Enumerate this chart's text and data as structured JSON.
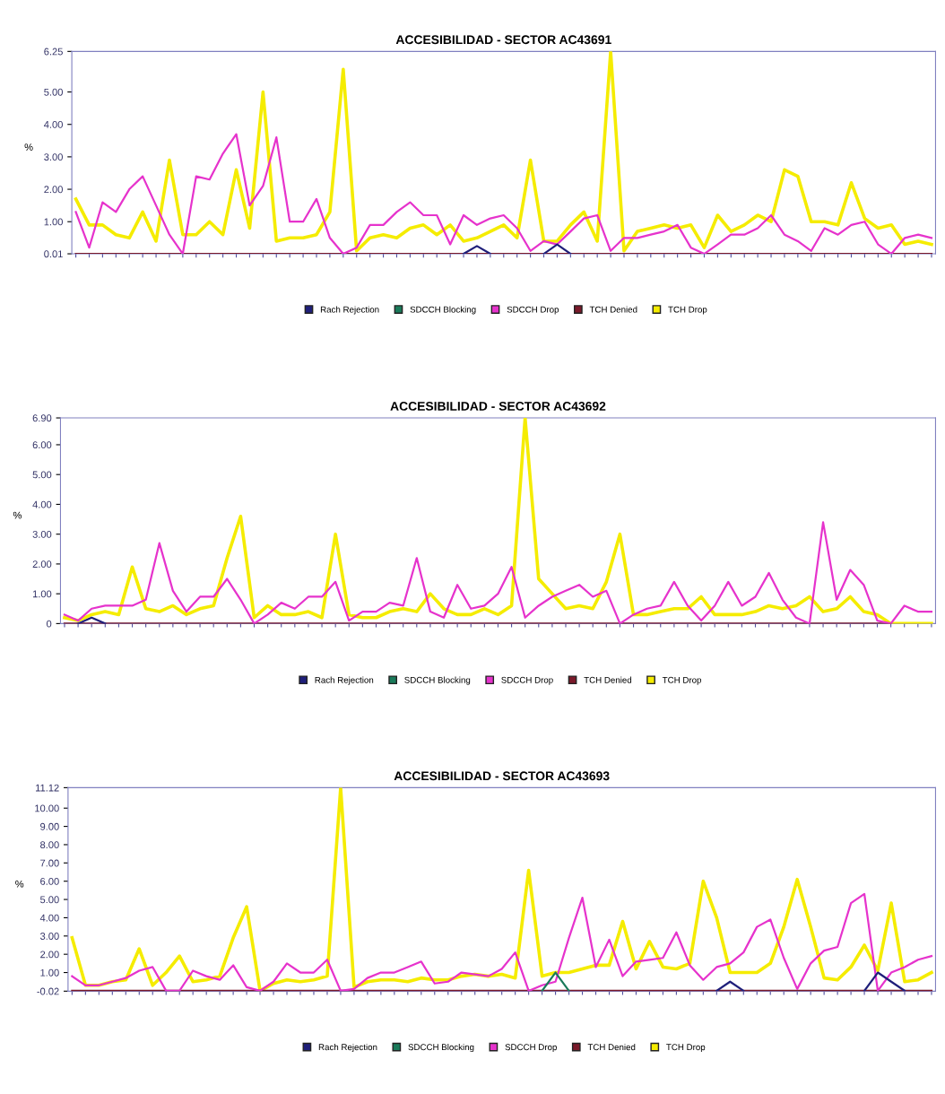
{
  "chart_data": [
    {
      "type": "line",
      "title": "ACCESIBILIDAD - SECTOR AC43691",
      "ylabel": "%",
      "legend": "bottom",
      "grid": false,
      "marker": "none",
      "line_style": "solid",
      "categories": [
        null,
        null,
        null,
        null,
        null,
        null,
        null,
        null,
        null,
        null,
        null,
        null,
        null,
        null,
        null,
        null,
        null,
        null,
        null,
        null,
        null,
        null,
        null,
        null,
        null,
        null,
        null,
        null,
        null,
        null,
        null,
        null,
        null,
        null,
        null,
        null,
        null,
        null,
        null,
        null,
        null,
        null,
        null,
        null,
        null,
        null,
        null,
        null,
        null,
        null,
        null,
        null,
        null,
        null,
        null,
        null,
        null,
        null,
        null,
        null,
        null,
        null,
        null,
        null,
        null
      ],
      "ylim": [
        0.01,
        6.25
      ],
      "yticks": [
        {
          "value": 0.01,
          "label": "0.01"
        },
        {
          "value": 1,
          "label": "1.00"
        },
        {
          "value": 2,
          "label": "2.00"
        },
        {
          "value": 3,
          "label": "3.00"
        },
        {
          "value": 4,
          "label": "4.00"
        },
        {
          "value": 5,
          "label": "5.00"
        },
        {
          "value": 6.25,
          "label": "6.25"
        }
      ],
      "series": [
        {
          "name": "Rach Rejection",
          "color": "#1f1f7a",
          "values": [
            null,
            null,
            null,
            null,
            null,
            null,
            null,
            null,
            null,
            null,
            null,
            null,
            null,
            null,
            null,
            null,
            null,
            null,
            null,
            null,
            null,
            null,
            null,
            null,
            null,
            null,
            null,
            null,
            null,
            0.01,
            0.25,
            0.01,
            null,
            null,
            null,
            0.01,
            0.3,
            0.01,
            null,
            null,
            null,
            null,
            null,
            null,
            null,
            null,
            null,
            null,
            null,
            null,
            null,
            null,
            null,
            null,
            null,
            null,
            null,
            null,
            null,
            null,
            null,
            null,
            null,
            null,
            null
          ]
        },
        {
          "name": "SDCCH Blocking",
          "color": "#1a7a5a",
          "values": [
            null,
            null,
            null,
            null,
            null,
            null,
            null,
            null,
            null,
            null,
            null,
            null,
            null,
            null,
            null,
            null,
            null,
            null,
            null,
            null,
            null,
            null,
            null,
            null,
            null,
            null,
            null,
            null,
            null,
            null,
            null,
            null,
            null,
            null,
            null,
            null,
            null,
            null,
            null,
            null,
            null,
            null,
            null,
            null,
            null,
            null,
            null,
            null,
            null,
            null,
            null,
            null,
            null,
            null,
            null,
            null,
            null,
            null,
            null,
            null,
            null,
            null,
            null,
            null,
            null
          ]
        },
        {
          "name": "SDCCH Drop",
          "color": "#e633cc",
          "values": [
            1.3,
            0.2,
            1.6,
            1.3,
            2.0,
            2.4,
            1.5,
            0.6,
            0.01,
            2.4,
            2.3,
            3.1,
            3.7,
            1.5,
            2.1,
            3.6,
            1.0,
            1.0,
            1.7,
            0.5,
            0.01,
            0.2,
            0.9,
            0.9,
            1.3,
            1.6,
            1.2,
            1.2,
            0.3,
            1.2,
            0.9,
            1.1,
            1.2,
            0.8,
            0.1,
            0.4,
            0.3,
            0.7,
            1.1,
            1.2,
            0.1,
            0.5,
            0.5,
            0.6,
            0.7,
            0.9,
            0.2,
            0.01,
            0.3,
            0.6,
            0.6,
            0.8,
            1.2,
            0.6,
            0.4,
            0.1,
            0.8,
            0.6,
            0.9,
            1.0,
            0.3,
            0.01,
            0.5,
            0.6,
            0.5
          ]
        },
        {
          "name": "TCH Denied",
          "color": "#7a1a2a",
          "values": [
            0.01,
            0.01,
            0.01,
            0.01,
            0.01,
            0.01,
            0.01,
            0.01,
            0.01,
            0.01,
            0.01,
            0.01,
            0.01,
            0.01,
            0.01,
            0.01,
            0.01,
            0.01,
            0.01,
            0.01,
            0.01,
            0.01,
            0.01,
            0.01,
            0.01,
            0.01,
            0.01,
            0.01,
            0.01,
            0.01,
            0.01,
            0.01,
            0.01,
            0.01,
            0.01,
            0.01,
            0.01,
            0.01,
            0.01,
            0.01,
            0.01,
            0.01,
            0.01,
            0.01,
            0.01,
            0.01,
            0.01,
            0.01,
            0.01,
            0.01,
            0.01,
            0.01,
            0.01,
            0.01,
            0.01,
            0.01,
            0.01,
            0.01,
            0.01,
            0.01,
            0.01,
            0.01,
            0.01,
            0.01,
            0.01
          ]
        },
        {
          "name": "TCH Drop",
          "color": "#f5ec00",
          "values": [
            1.7,
            0.9,
            0.9,
            0.6,
            0.5,
            1.3,
            0.4,
            2.9,
            0.6,
            0.6,
            1.0,
            0.6,
            2.6,
            0.8,
            5.0,
            0.4,
            0.5,
            0.5,
            0.6,
            1.3,
            5.7,
            0.1,
            0.5,
            0.6,
            0.5,
            0.8,
            0.9,
            0.6,
            0.9,
            0.4,
            0.5,
            0.7,
            0.9,
            0.5,
            2.9,
            0.4,
            0.4,
            0.9,
            1.3,
            0.4,
            6.25,
            0.1,
            0.7,
            0.8,
            0.9,
            0.8,
            0.9,
            0.2,
            1.2,
            0.7,
            0.9,
            1.2,
            1.0,
            2.6,
            2.4,
            1.0,
            1.0,
            0.9,
            2.2,
            1.1,
            0.8,
            0.9,
            0.3,
            0.4,
            0.3
          ]
        }
      ]
    },
    {
      "type": "line",
      "title": "ACCESIBILIDAD - SECTOR AC43692",
      "ylabel": "%",
      "legend": "bottom",
      "grid": false,
      "marker": "none",
      "line_style": "solid",
      "categories": [
        null,
        null,
        null,
        null,
        null,
        null,
        null,
        null,
        null,
        null,
        null,
        null,
        null,
        null,
        null,
        null,
        null,
        null,
        null,
        null,
        null,
        null,
        null,
        null,
        null,
        null,
        null,
        null,
        null,
        null,
        null,
        null,
        null,
        null,
        null,
        null,
        null,
        null,
        null,
        null,
        null,
        null,
        null,
        null,
        null,
        null,
        null,
        null,
        null,
        null,
        null,
        null,
        null,
        null,
        null,
        null,
        null,
        null,
        null,
        null,
        null,
        null,
        null,
        null,
        null
      ],
      "ylim": [
        0,
        6.9
      ],
      "yticks": [
        0,
        {
          "value": 1,
          "label": "1.00"
        },
        {
          "value": 2,
          "label": "2.00"
        },
        {
          "value": 3,
          "label": "3.00"
        },
        {
          "value": 4,
          "label": "4.00"
        },
        {
          "value": 5,
          "label": "5.00"
        },
        {
          "value": 6,
          "label": "6.00"
        },
        {
          "value": 6.9,
          "label": "6.90"
        }
      ],
      "series": [
        {
          "name": "Rach Rejection",
          "color": "#1f1f7a",
          "values": [
            null,
            0,
            0.2,
            0,
            null,
            null,
            null,
            null,
            null,
            null,
            null,
            null,
            null,
            null,
            null,
            null,
            null,
            null,
            null,
            null,
            null,
            null,
            null,
            null,
            null,
            null,
            null,
            null,
            null,
            null,
            null,
            null,
            null,
            null,
            null,
            null,
            null,
            null,
            null,
            null,
            null,
            null,
            null,
            null,
            null,
            null,
            null,
            null,
            null,
            null,
            null,
            null,
            null,
            null,
            null,
            null,
            null,
            null,
            null,
            null,
            null,
            null,
            null,
            null,
            null
          ]
        },
        {
          "name": "SDCCH Blocking",
          "color": "#1a7a5a",
          "values": [
            null,
            null,
            null,
            null,
            null,
            null,
            null,
            null,
            null,
            null,
            null,
            null,
            null,
            null,
            null,
            null,
            null,
            null,
            null,
            null,
            null,
            null,
            null,
            null,
            null,
            null,
            null,
            null,
            null,
            null,
            null,
            null,
            null,
            null,
            null,
            null,
            null,
            null,
            null,
            null,
            null,
            null,
            null,
            null,
            null,
            null,
            null,
            null,
            null,
            null,
            null,
            null,
            null,
            null,
            null,
            null,
            null,
            null,
            null,
            null,
            null,
            null,
            null,
            null,
            null
          ]
        },
        {
          "name": "SDCCH Drop",
          "color": "#e633cc",
          "values": [
            0.3,
            0.1,
            0.5,
            0.6,
            0.6,
            0.6,
            0.8,
            2.7,
            1.1,
            0.4,
            0.9,
            0.9,
            1.5,
            0.8,
            0,
            0.3,
            0.7,
            0.5,
            0.9,
            0.9,
            1.4,
            0.1,
            0.4,
            0.4,
            0.7,
            0.6,
            2.2,
            0.4,
            0.2,
            1.3,
            0.5,
            0.6,
            1.0,
            1.9,
            0.2,
            0.6,
            0.9,
            1.1,
            1.3,
            0.9,
            1.1,
            0,
            0.3,
            0.5,
            0.6,
            1.4,
            0.6,
            0.1,
            0.6,
            1.4,
            0.6,
            0.9,
            1.7,
            0.8,
            0.2,
            0,
            3.4,
            0.8,
            1.8,
            1.3,
            0.1,
            0,
            0.6,
            0.4,
            0.4
          ]
        },
        {
          "name": "TCH Denied",
          "color": "#7a1a2a",
          "values": [
            0,
            0,
            0,
            0,
            0,
            0,
            0,
            0,
            0,
            0,
            0,
            0,
            0,
            0,
            0,
            0,
            0,
            0,
            0,
            0,
            0,
            0,
            0,
            0,
            0,
            0,
            0,
            0,
            0,
            0,
            0,
            0,
            0,
            0,
            0,
            0,
            0,
            0,
            0,
            0,
            0,
            0,
            0,
            0,
            0,
            0,
            0,
            0,
            0,
            0,
            0,
            0,
            0,
            0,
            0,
            0,
            0,
            0,
            0,
            0,
            0,
            0,
            null,
            null,
            null
          ]
        },
        {
          "name": "TCH Drop",
          "color": "#f5ec00",
          "values": [
            0.2,
            0.1,
            0.3,
            0.4,
            0.3,
            1.9,
            0.5,
            0.4,
            0.6,
            0.3,
            0.5,
            0.6,
            2.2,
            3.6,
            0.2,
            0.6,
            0.3,
            0.3,
            0.4,
            0.2,
            3.0,
            0.3,
            0.2,
            0.2,
            0.4,
            0.5,
            0.4,
            1.0,
            0.5,
            0.3,
            0.3,
            0.5,
            0.3,
            0.6,
            6.9,
            1.5,
            1.0,
            0.5,
            0.6,
            0.5,
            1.4,
            3.0,
            0.3,
            0.3,
            0.4,
            0.5,
            0.5,
            0.9,
            0.3,
            0.3,
            0.3,
            0.4,
            0.6,
            0.5,
            0.6,
            0.9,
            0.4,
            0.5,
            0.9,
            0.4,
            0.3,
            0,
            0,
            0,
            0
          ]
        }
      ]
    },
    {
      "type": "line",
      "title": "ACCESIBILIDAD - SECTOR AC43693",
      "ylabel": "%",
      "legend": "bottom",
      "grid": false,
      "marker": "none",
      "line_style": "solid",
      "categories": [
        null,
        null,
        null,
        null,
        null,
        null,
        null,
        null,
        null,
        null,
        null,
        null,
        null,
        null,
        null,
        null,
        null,
        null,
        null,
        null,
        null,
        null,
        null,
        null,
        null,
        null,
        null,
        null,
        null,
        null,
        null,
        null,
        null,
        null,
        null,
        null,
        null,
        null,
        null,
        null,
        null,
        null,
        null,
        null,
        null,
        null,
        null,
        null,
        null,
        null,
        null,
        null,
        null,
        null,
        null,
        null,
        null,
        null,
        null,
        null,
        null,
        null,
        null,
        null,
        null
      ],
      "ylim": [
        -0.02,
        11.12
      ],
      "yticks": [
        {
          "value": -0.02,
          "label": "-0.02"
        },
        {
          "value": 1,
          "label": "1.00"
        },
        {
          "value": 2,
          "label": "2.00"
        },
        {
          "value": 3,
          "label": "3.00"
        },
        {
          "value": 4,
          "label": "4.00"
        },
        {
          "value": 5,
          "label": "5.00"
        },
        {
          "value": 6,
          "label": "6.00"
        },
        {
          "value": 7,
          "label": "7.00"
        },
        {
          "value": 8,
          "label": "8.00"
        },
        {
          "value": 9,
          "label": "9.00"
        },
        {
          "value": 10,
          "label": "10.00"
        },
        {
          "value": 11.12,
          "label": "11.12"
        }
      ],
      "series": [
        {
          "name": "Rach Rejection",
          "color": "#1f1f7a",
          "values": [
            null,
            null,
            null,
            null,
            null,
            null,
            null,
            null,
            null,
            null,
            null,
            null,
            null,
            null,
            null,
            null,
            null,
            null,
            null,
            null,
            null,
            null,
            null,
            null,
            null,
            null,
            null,
            null,
            null,
            null,
            null,
            null,
            null,
            null,
            null,
            null,
            null,
            null,
            null,
            null,
            null,
            null,
            null,
            null,
            null,
            null,
            null,
            null,
            0,
            0.5,
            0,
            null,
            null,
            null,
            null,
            null,
            null,
            null,
            null,
            0,
            1.0,
            0.5,
            0,
            null,
            null
          ]
        },
        {
          "name": "SDCCH Blocking",
          "color": "#1a7a5a",
          "values": [
            null,
            null,
            null,
            null,
            null,
            null,
            null,
            null,
            null,
            null,
            null,
            null,
            null,
            null,
            null,
            null,
            null,
            null,
            null,
            null,
            null,
            null,
            null,
            null,
            null,
            null,
            null,
            null,
            null,
            null,
            null,
            null,
            null,
            null,
            null,
            0,
            1.0,
            0,
            null,
            null,
            null,
            null,
            null,
            null,
            null,
            null,
            null,
            null,
            null,
            null,
            null,
            null,
            null,
            null,
            null,
            null,
            null,
            null,
            null,
            null,
            null,
            null,
            null,
            null,
            null
          ]
        },
        {
          "name": "SDCCH Drop",
          "color": "#e633cc",
          "values": [
            0.8,
            0.3,
            0.3,
            0.5,
            0.7,
            1.1,
            1.3,
            0,
            0,
            1.1,
            0.8,
            0.6,
            1.4,
            0.2,
            0,
            0.5,
            1.5,
            1.0,
            1.0,
            1.7,
            0,
            0.1,
            0.7,
            1.0,
            1.0,
            1.3,
            1.6,
            0.4,
            0.5,
            1.0,
            0.9,
            0.8,
            1.2,
            2.1,
            0,
            0.3,
            0.5,
            2.9,
            5.1,
            1.3,
            2.8,
            0.8,
            1.6,
            1.7,
            1.8,
            3.2,
            1.4,
            0.6,
            1.3,
            1.5,
            2.1,
            3.5,
            3.9,
            1.8,
            0.1,
            1.5,
            2.2,
            2.4,
            4.8,
            5.3,
            0,
            1.0,
            1.3,
            1.7,
            1.9
          ]
        },
        {
          "name": "TCH Denied",
          "color": "#7a1a2a",
          "values": [
            0,
            0,
            0,
            0,
            0,
            0,
            0,
            0,
            0,
            0,
            0,
            0,
            0,
            0,
            0,
            0,
            0,
            0,
            0,
            0,
            0,
            0,
            0,
            0,
            0,
            0,
            0,
            0,
            0,
            0,
            0,
            0,
            0,
            0,
            0,
            0,
            0,
            0,
            0,
            0,
            0,
            0,
            0,
            0,
            0,
            0,
            0,
            0,
            0,
            0,
            0,
            0,
            0,
            0,
            0,
            0,
            0,
            0,
            0,
            0,
            0,
            0,
            0,
            0,
            0
          ]
        },
        {
          "name": "TCH Drop",
          "color": "#f5ec00",
          "values": [
            2.9,
            0.3,
            0.3,
            0.5,
            0.6,
            2.3,
            0.3,
            1.0,
            1.9,
            0.5,
            0.6,
            0.8,
            2.9,
            4.6,
            0,
            0.4,
            0.6,
            0.5,
            0.6,
            0.8,
            11.12,
            0.2,
            0.5,
            0.6,
            0.6,
            0.5,
            0.7,
            0.6,
            0.6,
            0.8,
            0.9,
            0.8,
            0.9,
            0.7,
            6.6,
            0.8,
            1.0,
            1.0,
            1.2,
            1.4,
            1.4,
            3.8,
            1.2,
            2.7,
            1.3,
            1.2,
            1.5,
            6.0,
            4.0,
            1.0,
            1.0,
            1.0,
            1.5,
            3.5,
            6.1,
            3.5,
            0.7,
            0.6,
            1.3,
            2.5,
            1.1,
            4.8,
            0.5,
            0.6,
            1.0
          ]
        }
      ]
    }
  ]
}
